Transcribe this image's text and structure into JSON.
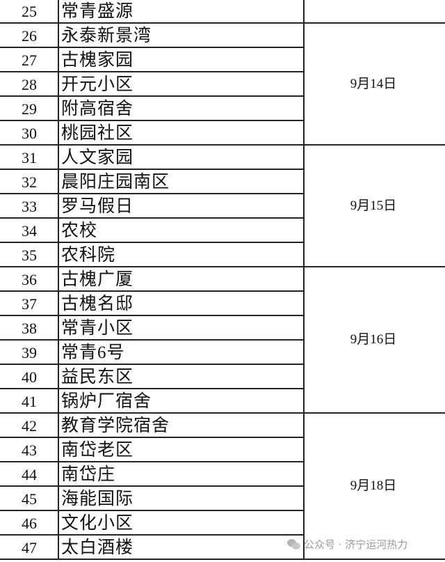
{
  "rows": [
    {
      "no": "25",
      "name": "常青盛源"
    },
    {
      "no": "26",
      "name": "永泰新景湾"
    },
    {
      "no": "27",
      "name": "古槐家园"
    },
    {
      "no": "28",
      "name": "开元小区"
    },
    {
      "no": "29",
      "name": "附高宿舍"
    },
    {
      "no": "30",
      "name": "桃园社区"
    },
    {
      "no": "31",
      "name": "人文家园"
    },
    {
      "no": "32",
      "name": "晨阳庄园南区"
    },
    {
      "no": "33",
      "name": "罗马假日"
    },
    {
      "no": "34",
      "name": "农校"
    },
    {
      "no": "35",
      "name": "农科院"
    },
    {
      "no": "36",
      "name": "古槐广厦"
    },
    {
      "no": "37",
      "name": "古槐名邸"
    },
    {
      "no": "38",
      "name": "常青小区"
    },
    {
      "no": "39",
      "name": "常青6号"
    },
    {
      "no": "40",
      "name": "益民东区"
    },
    {
      "no": "41",
      "name": "锅炉厂宿舍"
    },
    {
      "no": "42",
      "name": "教育学院宿舍"
    },
    {
      "no": "43",
      "name": "南岱老区"
    },
    {
      "no": "44",
      "name": "南岱庄"
    },
    {
      "no": "45",
      "name": "海能国际"
    },
    {
      "no": "46",
      "name": "文化小区"
    },
    {
      "no": "47",
      "name": "太白酒楼"
    }
  ],
  "groups": [
    {
      "date": "",
      "start": 0,
      "end": 0
    },
    {
      "date": "9月14日",
      "start": 1,
      "end": 5
    },
    {
      "date": "9月15日",
      "start": 6,
      "end": 10
    },
    {
      "date": "9月16日",
      "start": 11,
      "end": 16
    },
    {
      "date": "9月18日",
      "start": 17,
      "end": 22
    }
  ],
  "watermark": {
    "icon": "wechat-icon",
    "text": "公众号 · 济宁运河热力"
  }
}
